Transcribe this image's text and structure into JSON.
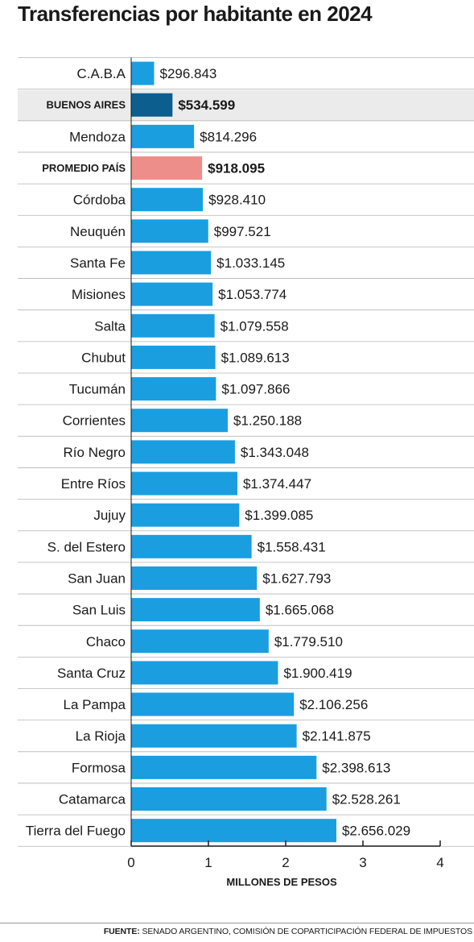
{
  "chart_data": {
    "type": "bar",
    "orientation": "horizontal",
    "title": "Transferencias por habitante en 2024",
    "xlabel": "MILLONES DE PESOS",
    "xlim": [
      0,
      4
    ],
    "xticks": [
      "0",
      "1",
      "2",
      "3",
      "4"
    ],
    "categories": [
      "C.A.B.A",
      "BUENOS AIRES",
      "Mendoza",
      "PROMEDIO PAÍS",
      "Córdoba",
      "Neuquén",
      "Santa Fe",
      "Misiones",
      "Salta",
      "Chubut",
      "Tucumán",
      "Corrientes",
      "Río Negro",
      "Entre Ríos",
      "Jujuy",
      "S. del Estero",
      "San Juan",
      "San Luis",
      "Chaco",
      "Santa Cruz",
      "La Pampa",
      "La Rioja",
      "Formosa",
      "Catamarca",
      "Tierra del Fuego"
    ],
    "values": [
      0.296843,
      0.534599,
      0.814296,
      0.918095,
      0.92841,
      0.997521,
      1.033145,
      1.053774,
      1.079558,
      1.089613,
      1.097866,
      1.250188,
      1.343048,
      1.374447,
      1.399085,
      1.558431,
      1.627793,
      1.665068,
      1.77951,
      1.900419,
      2.106256,
      2.141875,
      2.398613,
      2.528261,
      2.656029
    ],
    "value_labels": [
      "$296.843",
      "$534.599",
      "$814.296",
      "$918.095",
      "$928.410",
      "$997.521",
      "$1.033.145",
      "$1.053.774",
      "$1.079.558",
      "$1.089.613",
      "$1.097.866",
      "$1.250.188",
      "$1.343.048",
      "$1.374.447",
      "$1.399.085",
      "$1.558.431",
      "$1.627.793",
      "$1.665.068",
      "$1.779.510",
      "$1.900.419",
      "$2.106.256",
      "$2.141.875",
      "$2.398.613",
      "$2.528.261",
      "$2.656.029"
    ],
    "highlight": {
      "BUENOS AIRES": "#0b5e8e",
      "PROMEDIO PAÍS": "#ee8e8a"
    },
    "bar_color": "#1a9ee0",
    "highlight_row_background": "#ebebeb",
    "grid": false
  },
  "source": {
    "label": "FUENTE:",
    "text": " SENADO ARGENTINO, COMISIÓN DE COPARTICIPACIÓN FEDERAL DE IMPUESTOS"
  }
}
